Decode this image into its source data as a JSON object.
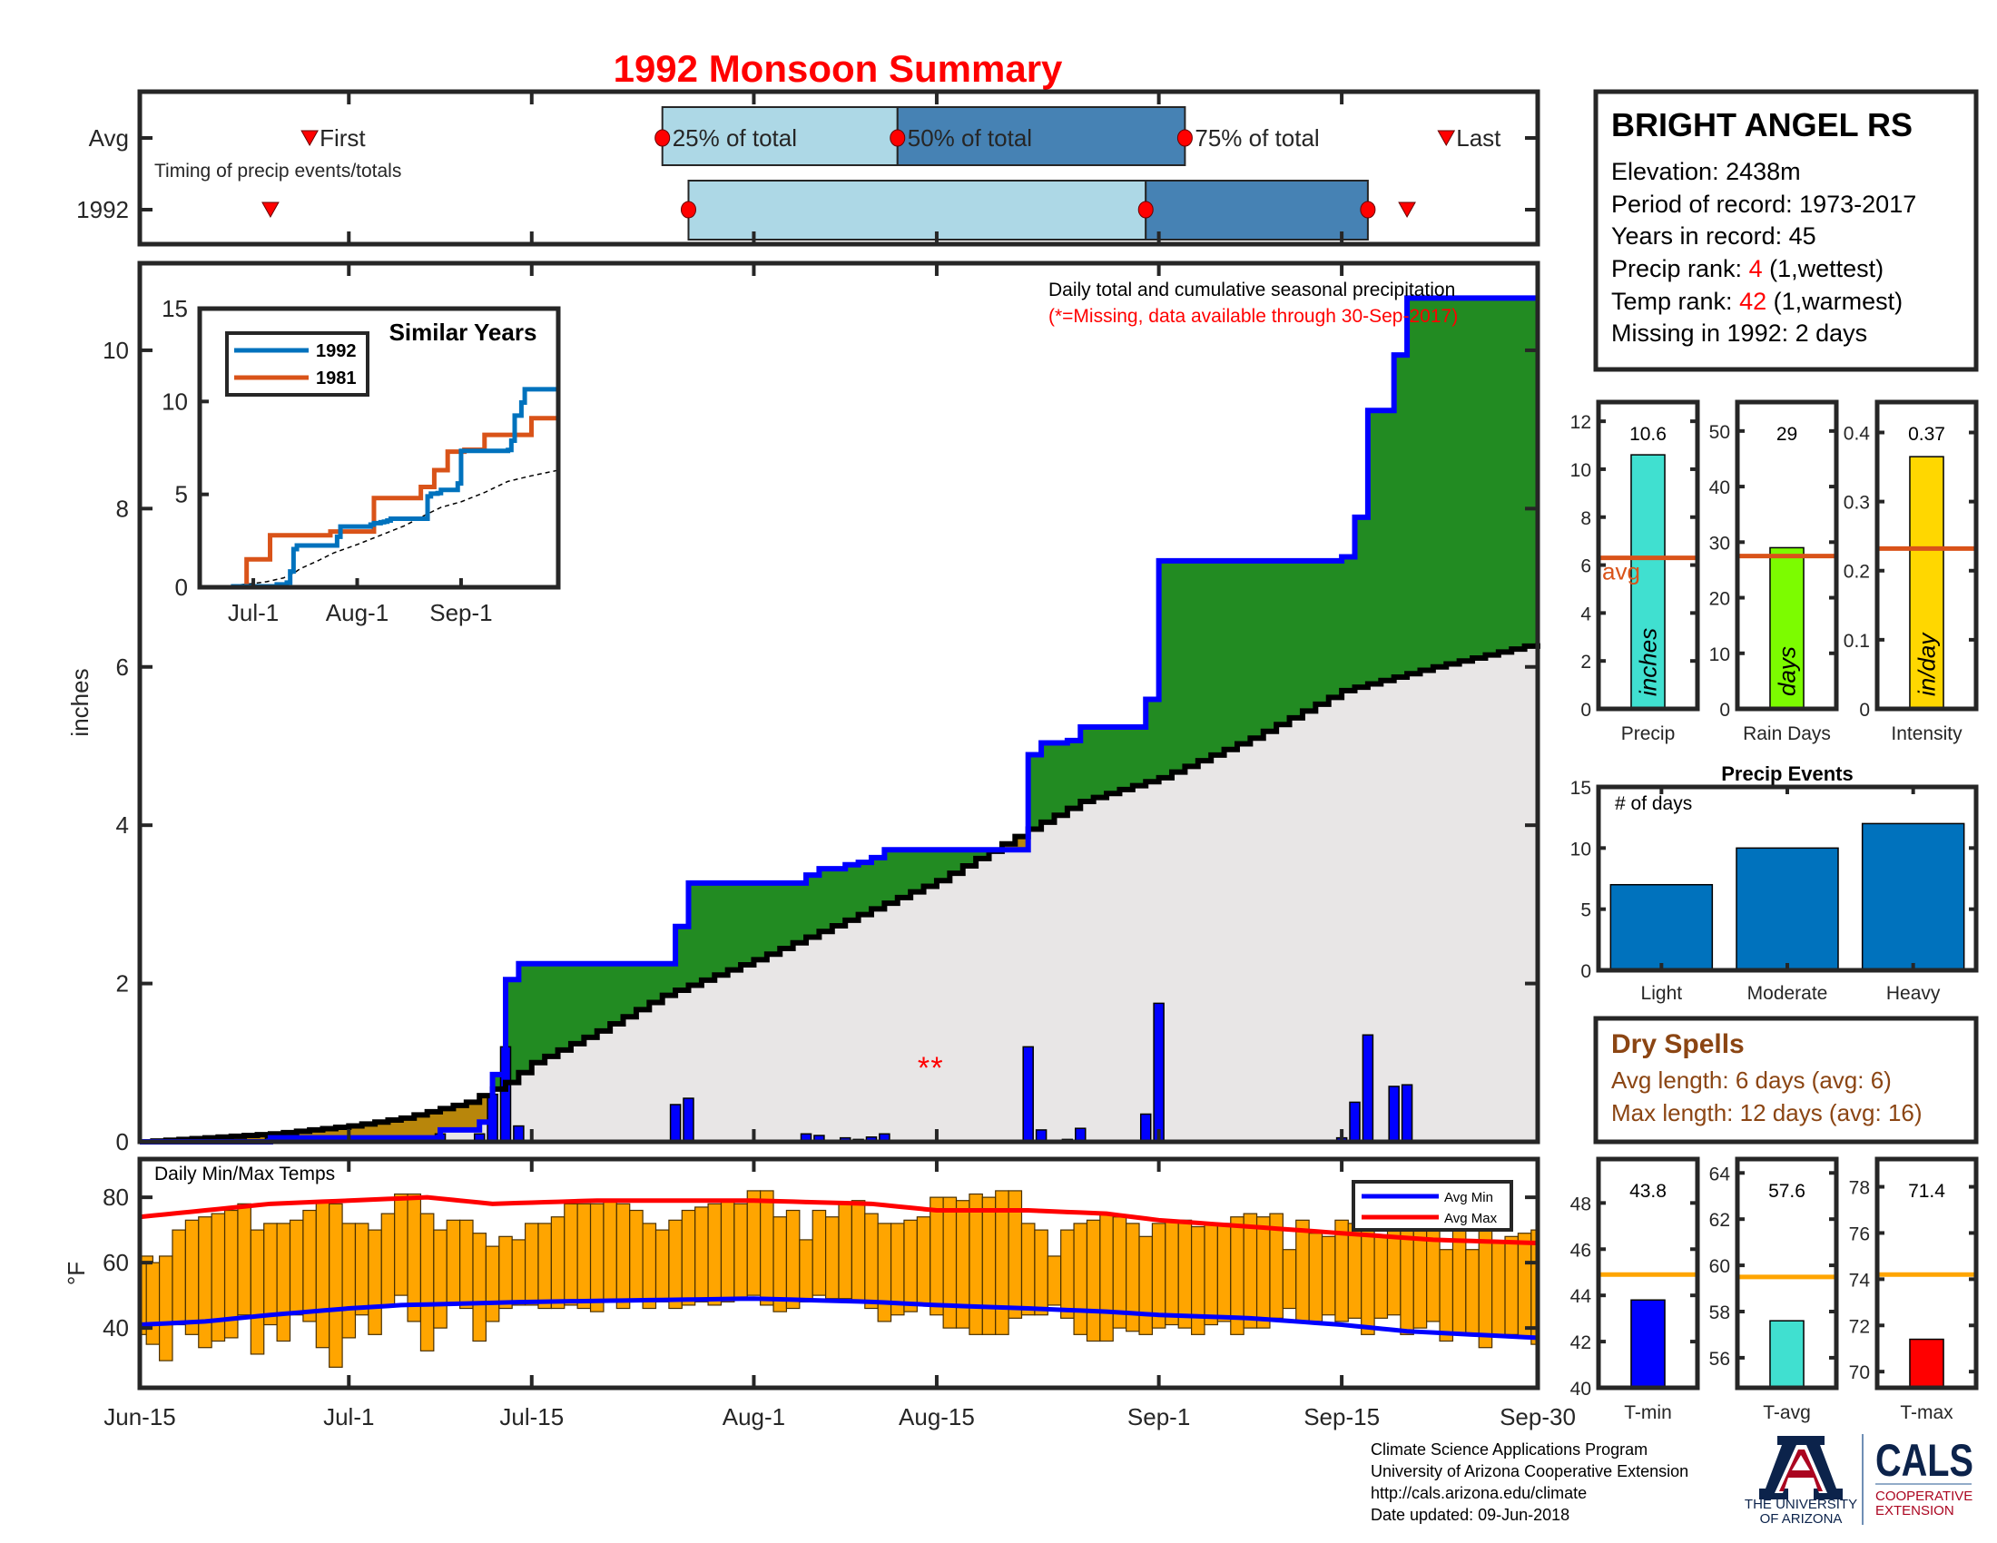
{
  "title": "1992 Monsoon Summary",
  "timing": {
    "caption": "Timing of precip events/totals",
    "marker_labels": {
      "first": "First",
      "p25": "25% of total",
      "p50": "50% of total",
      "p75": "75% of total",
      "last": "Last"
    },
    "rows": [
      {
        "label": "Avg",
        "first": "06-28",
        "p25": "07-25",
        "p50": "08-12",
        "p75": "09-03",
        "last": "09-23"
      },
      {
        "label": "1992",
        "first": "06-25",
        "p25": "07-27",
        "p50": "08-31",
        "p75": "09-17",
        "last": "09-20"
      }
    ],
    "colors": {
      "first_half": "#ADD8E6",
      "second_half": "#4682B4",
      "marker": "#FF0000"
    }
  },
  "station": {
    "name": "BRIGHT ANGEL RS",
    "elevation": "Elevation: 2438m",
    "period": "Period of record: 1973-2017",
    "years": "Years in record: 45",
    "precip_rank_label": "Precip rank: ",
    "precip_rank": "4",
    "precip_rank_note": " (1,wettest)",
    "temp_rank_label": "Temp rank: ",
    "temp_rank": "42",
    "temp_rank_note": " (1,warmest)",
    "missing": "Missing in 1992: 2 days"
  },
  "dry_spells": {
    "title": "Dry Spells",
    "avg_length": "Avg length: 6 days (avg: 6)",
    "max_length": "Max length: 12 days (avg: 16)",
    "color": "#8B4513"
  },
  "footer": {
    "lines": [
      "Climate Science Applications Program",
      "University of Arizona Cooperative Extension",
      "http://cals.arizona.edu/climate",
      " Date updated: 09-Jun-2018"
    ]
  },
  "logo": {
    "university_line1": "THE UNIVERSITY",
    "university_line2": "OF ARIZONA",
    "cals": "CALS",
    "ext_line1": "COOPERATIVE",
    "ext_line2": "EXTENSION"
  },
  "chart_data": [
    {
      "id": "main",
      "type": "area",
      "ylabel": "inches",
      "ylim": [
        0,
        11.1
      ],
      "yticks": [
        0,
        2,
        4,
        6,
        8,
        10
      ],
      "xlim": [
        "06-15",
        "09-30"
      ],
      "xticks": [
        "06-15",
        "07-01",
        "07-15",
        "08-01",
        "08-15",
        "09-01",
        "09-15",
        "09-30"
      ],
      "xtick_labels": [
        "Jun-15",
        "Jul-1",
        "Jul-15",
        "Aug-1",
        "Aug-15",
        "Sep-1",
        "Sep-15",
        "Sep-30"
      ],
      "annotation": "Daily total and cumulative seasonal precipitation",
      "annotation_missing": "(*=Missing, data available through 30-Sep-2017)",
      "missing_marker": "*",
      "missing_dates": [
        "08-14",
        "08-15"
      ],
      "daily_precip_1992": [
        {
          "date": "06-25",
          "value": 0.05
        },
        {
          "date": "07-08",
          "value": 0.1
        },
        {
          "date": "07-11",
          "value": 0.1
        },
        {
          "date": "07-12",
          "value": 0.6
        },
        {
          "date": "07-13",
          "value": 1.2
        },
        {
          "date": "07-14",
          "value": 0.2
        },
        {
          "date": "07-26",
          "value": 0.47
        },
        {
          "date": "07-27",
          "value": 0.55
        },
        {
          "date": "08-05",
          "value": 0.1
        },
        {
          "date": "08-06",
          "value": 0.08
        },
        {
          "date": "08-08",
          "value": 0.05
        },
        {
          "date": "08-09",
          "value": 0.03
        },
        {
          "date": "08-10",
          "value": 0.06
        },
        {
          "date": "08-11",
          "value": 0.1
        },
        {
          "date": "08-22",
          "value": 1.2
        },
        {
          "date": "08-23",
          "value": 0.15
        },
        {
          "date": "08-25",
          "value": 0.03
        },
        {
          "date": "08-26",
          "value": 0.17
        },
        {
          "date": "08-31",
          "value": 0.35
        },
        {
          "date": "09-01",
          "value": 1.75
        },
        {
          "date": "09-15",
          "value": 0.05
        },
        {
          "date": "09-16",
          "value": 0.5
        },
        {
          "date": "09-17",
          "value": 1.35
        },
        {
          "date": "09-19",
          "value": 0.7
        },
        {
          "date": "09-20",
          "value": 0.72
        }
      ],
      "avg_cumulative": [
        {
          "date": "06-15",
          "value": 0
        },
        {
          "date": "06-25",
          "value": 0.1
        },
        {
          "date": "07-01",
          "value": 0.2
        },
        {
          "date": "07-05",
          "value": 0.3
        },
        {
          "date": "07-10",
          "value": 0.5
        },
        {
          "date": "07-13",
          "value": 0.75
        },
        {
          "date": "07-15",
          "value": 1.0
        },
        {
          "date": "07-20",
          "value": 1.4
        },
        {
          "date": "07-25",
          "value": 1.85
        },
        {
          "date": "08-01",
          "value": 2.3
        },
        {
          "date": "08-08",
          "value": 2.8
        },
        {
          "date": "08-15",
          "value": 3.3
        },
        {
          "date": "08-22",
          "value": 3.95
        },
        {
          "date": "08-26",
          "value": 4.3
        },
        {
          "date": "09-01",
          "value": 4.6
        },
        {
          "date": "09-08",
          "value": 5.1
        },
        {
          "date": "09-15",
          "value": 5.7
        },
        {
          "date": "09-22",
          "value": 6.0
        },
        {
          "date": "09-30",
          "value": 6.3
        }
      ],
      "colors": {
        "daily_bar": "#0000FF",
        "cum_1992": "#0000FF",
        "cum_avg": "#000000",
        "above_avg": "#228B22",
        "below_avg": "#B8860B",
        "base": "#E8E6E6"
      }
    },
    {
      "id": "similar_years",
      "type": "line",
      "title": "Similar Years",
      "ylim": [
        0,
        15
      ],
      "yticks": [
        0,
        5,
        10,
        15
      ],
      "xticks": [
        "07-01",
        "08-01",
        "09-01"
      ],
      "xtick_labels": [
        "Jul-1",
        "Aug-1",
        "Sep-1"
      ],
      "series": [
        {
          "name": "1992",
          "color": "#0072BD",
          "source": "cumulative of daily_precip_1992"
        },
        {
          "name": "1981",
          "color": "#D95319",
          "steps": [
            {
              "date": "06-15",
              "value": 0
            },
            {
              "date": "06-29",
              "value": 1.5
            },
            {
              "date": "07-06",
              "value": 2.8
            },
            {
              "date": "07-24",
              "value": 3.0
            },
            {
              "date": "08-06",
              "value": 4.8
            },
            {
              "date": "08-20",
              "value": 5.4
            },
            {
              "date": "08-24",
              "value": 6.3
            },
            {
              "date": "08-28",
              "value": 7.3
            },
            {
              "date": "09-02",
              "value": 7.4
            },
            {
              "date": "09-08",
              "value": 8.2
            },
            {
              "date": "09-22",
              "value": 9.1
            }
          ]
        }
      ],
      "avg_style": "dashed"
    },
    {
      "id": "temps",
      "type": "bar",
      "title": "Daily Min/Max Temps",
      "ylabel": "°F",
      "ylim": [
        21.7,
        91.7
      ],
      "yticks": [
        40,
        60,
        80
      ],
      "legend": {
        "placement": "top-right",
        "entries": [
          {
            "name": "Avg Min",
            "color": "#0000FF"
          },
          {
            "name": "Avg Max",
            "color": "#FF0000"
          }
        ]
      },
      "bar_color": "#FFA500",
      "daily_max": [
        62,
        60,
        62,
        70,
        73,
        74,
        75,
        76,
        78,
        70,
        72,
        72,
        73,
        76,
        79,
        78,
        72,
        72,
        70,
        75,
        81,
        81,
        75,
        70,
        73,
        73,
        69,
        65,
        68,
        67,
        72,
        72,
        74,
        78,
        78,
        78,
        79,
        78,
        76,
        72,
        70,
        73,
        76,
        77,
        78,
        79,
        78,
        82,
        82,
        74,
        76,
        67,
        76,
        74,
        78,
        79,
        75,
        72,
        72,
        73,
        74,
        80,
        80,
        79,
        81,
        80,
        82,
        82,
        72,
        70,
        62,
        70,
        72,
        73,
        75,
        74,
        72,
        68,
        72,
        73,
        73,
        71,
        72,
        72,
        74,
        75,
        74,
        75,
        64,
        73,
        69,
        68,
        73,
        72,
        71,
        68,
        70,
        72,
        73,
        73,
        64,
        72,
        64,
        72,
        66,
        68,
        69,
        70
      ],
      "daily_min": [
        38,
        35,
        30,
        41,
        38,
        34,
        36,
        37,
        44,
        32,
        41,
        36,
        44,
        42,
        34,
        28,
        37,
        44,
        38,
        47,
        50,
        42,
        33,
        40,
        47,
        46,
        36,
        42,
        46,
        47,
        47,
        46,
        46,
        47,
        46,
        45,
        48,
        46,
        48,
        46,
        48,
        46,
        47,
        48,
        47,
        48,
        49,
        50,
        47,
        45,
        46,
        48,
        50,
        49,
        49,
        48,
        46,
        42,
        44,
        45,
        47,
        44,
        40,
        40,
        38,
        38,
        38,
        43,
        44,
        44,
        47,
        43,
        38,
        36,
        36,
        40,
        39,
        38,
        40,
        41,
        40,
        38,
        41,
        42,
        38,
        40,
        40,
        43,
        46,
        42,
        42,
        44,
        42,
        43,
        38,
        43,
        44,
        38,
        40,
        42,
        36,
        38,
        38,
        34,
        38,
        38,
        37,
        35
      ],
      "avg_max": [
        {
          "date": "06-15",
          "value": 74
        },
        {
          "date": "06-20",
          "value": 76
        },
        {
          "date": "06-25",
          "value": 78
        },
        {
          "date": "07-01",
          "value": 79
        },
        {
          "date": "07-07",
          "value": 80
        },
        {
          "date": "07-12",
          "value": 78
        },
        {
          "date": "07-20",
          "value": 79
        },
        {
          "date": "08-01",
          "value": 79
        },
        {
          "date": "08-10",
          "value": 78
        },
        {
          "date": "08-15",
          "value": 76
        },
        {
          "date": "08-22",
          "value": 76
        },
        {
          "date": "08-28",
          "value": 75
        },
        {
          "date": "09-01",
          "value": 73
        },
        {
          "date": "09-08",
          "value": 71
        },
        {
          "date": "09-15",
          "value": 69
        },
        {
          "date": "09-22",
          "value": 67
        },
        {
          "date": "09-30",
          "value": 66
        }
      ],
      "avg_min": [
        {
          "date": "06-15",
          "value": 41
        },
        {
          "date": "06-20",
          "value": 42
        },
        {
          "date": "06-25",
          "value": 44
        },
        {
          "date": "07-01",
          "value": 46
        },
        {
          "date": "07-05",
          "value": 47
        },
        {
          "date": "07-15",
          "value": 48
        },
        {
          "date": "08-01",
          "value": 49
        },
        {
          "date": "08-10",
          "value": 48
        },
        {
          "date": "08-15",
          "value": 47
        },
        {
          "date": "08-22",
          "value": 46
        },
        {
          "date": "08-28",
          "value": 45
        },
        {
          "date": "09-01",
          "value": 44
        },
        {
          "date": "09-08",
          "value": 43
        },
        {
          "date": "09-15",
          "value": 41
        },
        {
          "date": "09-20",
          "value": 39
        },
        {
          "date": "09-25",
          "value": 38
        },
        {
          "date": "09-30",
          "value": 37
        }
      ]
    },
    {
      "id": "precip_total",
      "type": "bar",
      "category": "Precip",
      "unit": "inches",
      "value": 10.6,
      "value_label": "10.6",
      "avg": 6.3,
      "avg_label": "avg",
      "ylim": [
        0,
        12.8
      ],
      "yticks": [
        0,
        2,
        4,
        6,
        8,
        10,
        12
      ],
      "tick_labels": [
        "0",
        "2",
        "4",
        "6",
        "8",
        "10",
        "12"
      ],
      "color": "#40E0D0",
      "avg_color": "#D95319"
    },
    {
      "id": "rain_days",
      "type": "bar",
      "category": "Rain Days",
      "unit": "days",
      "value": 29,
      "value_label": "29",
      "avg": 27.5,
      "ylim": [
        0,
        55.2
      ],
      "yticks": [
        0,
        10,
        20,
        30,
        40,
        50
      ],
      "tick_labels": [
        "0",
        "10",
        "20",
        "30",
        "40",
        "50"
      ],
      "color": "#7CFC00",
      "avg_color": "#D95319"
    },
    {
      "id": "intensity",
      "type": "bar",
      "category": "Intensity",
      "unit": "in/day",
      "value": 0.365,
      "value_label": "0.37",
      "avg": 0.232,
      "ylim": [
        0,
        0.444
      ],
      "yticks": [
        0,
        0.1,
        0.2,
        0.3,
        0.4
      ],
      "tick_labels": [
        "0",
        "0.1",
        "0.2",
        "0.3",
        "0.4"
      ],
      "color": "#FFD700",
      "avg_color": "#D95319"
    },
    {
      "id": "precip_events",
      "type": "bar",
      "title": "Precip Events",
      "ylabel": "# of days",
      "categories": [
        "Light",
        "Moderate",
        "Heavy"
      ],
      "values": [
        7,
        10,
        12
      ],
      "ylim": [
        0,
        15
      ],
      "yticks": [
        0,
        5,
        10,
        15
      ],
      "color": "#0072BD"
    },
    {
      "id": "t_min",
      "type": "bar",
      "category": "T-min",
      "value": 43.8,
      "value_label": "43.8",
      "avg": 44.9,
      "ylim": [
        40,
        49.9
      ],
      "yticks": [
        40,
        42,
        44,
        46,
        48
      ],
      "tick_labels": [
        "40",
        "42",
        "44",
        "46",
        "48"
      ],
      "color": "#0000FF",
      "avg_color": "#FFA500"
    },
    {
      "id": "t_avg",
      "type": "bar",
      "category": "T-avg",
      "value": 57.6,
      "value_label": "57.6",
      "avg": 59.5,
      "ylim": [
        54.7,
        64.6
      ],
      "yticks": [
        56,
        58,
        60,
        62,
        64
      ],
      "tick_labels": [
        "56",
        "58",
        "60",
        "62",
        "64"
      ],
      "color": "#40E0D0",
      "avg_color": "#FFA500"
    },
    {
      "id": "t_max",
      "type": "bar",
      "category": "T-max",
      "value": 71.4,
      "value_label": "71.4",
      "avg": 74.2,
      "ylim": [
        69.3,
        79.2
      ],
      "yticks": [
        70,
        72,
        74,
        76,
        78
      ],
      "tick_labels": [
        "70",
        "72",
        "74",
        "76",
        "78"
      ],
      "color": "#FF0000",
      "avg_color": "#FFA500"
    }
  ]
}
